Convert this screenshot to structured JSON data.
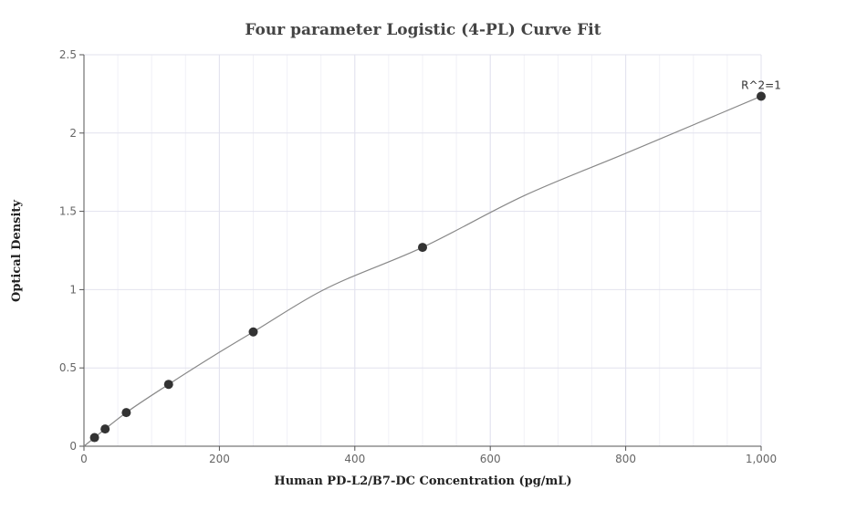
{
  "chart_data": {
    "type": "scatter",
    "title": "Four parameter Logistic (4-PL) Curve Fit",
    "xlabel": "Human PD-L2/B7-DC Concentration (pg/mL)",
    "ylabel": "Optical Density",
    "xlim": [
      0,
      1000
    ],
    "ylim": [
      0,
      2.5
    ],
    "x_ticks": [
      0,
      200,
      400,
      600,
      800,
      1000
    ],
    "x_tick_labels": [
      "0",
      "200",
      "400",
      "600",
      "800",
      "1,000"
    ],
    "y_ticks": [
      0,
      0.5,
      1,
      1.5,
      2,
      2.5
    ],
    "y_tick_labels": [
      "0",
      "0.5",
      "1",
      "1.5",
      "2",
      "2.5"
    ],
    "grid": true,
    "series": [
      {
        "x": [
          15.6,
          31.25,
          62.5,
          125,
          250,
          500,
          1000
        ],
        "y": [
          0.055,
          0.11,
          0.215,
          0.395,
          0.73,
          1.27,
          2.235
        ]
      }
    ],
    "fit_curve": {
      "model": "4-PL",
      "x": [
        0,
        15.6,
        31.25,
        62.5,
        125,
        200,
        250,
        350,
        500,
        650,
        800,
        1000
      ],
      "y": [
        0.0,
        0.055,
        0.11,
        0.215,
        0.395,
        0.6,
        0.73,
        0.99,
        1.27,
        1.6,
        1.87,
        2.235
      ]
    },
    "annotations": [
      {
        "text": "R^2=1",
        "x": 1000,
        "y": 2.235
      }
    ],
    "colors": {
      "points": "#333333",
      "curve": "#888888",
      "grid": "#e2e2ee"
    }
  }
}
